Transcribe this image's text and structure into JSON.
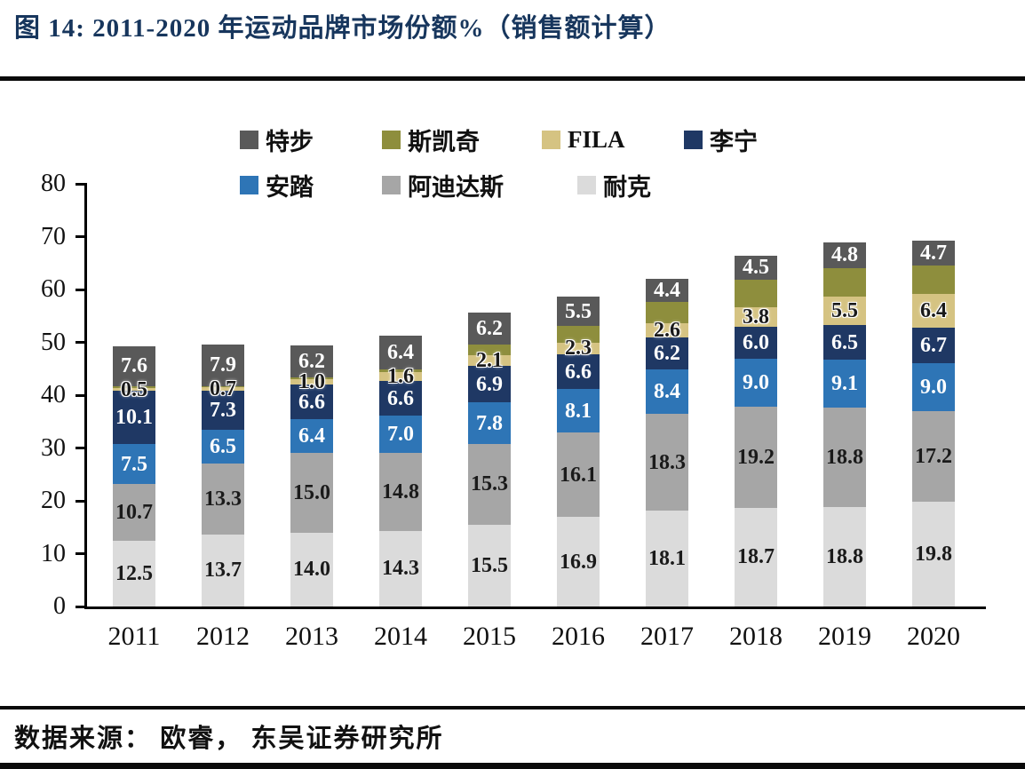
{
  "title": "图 14:  2011-2020 年运动品牌市场份额%（销售额计算）",
  "source": "数据来源： 欧睿， 东吴证券研究所",
  "chart_data": {
    "type": "bar",
    "stacked": true,
    "title": "2011-2020 年运动品牌市场份额%（销售额计算）",
    "xlabel": "",
    "ylabel": "",
    "ylim": [
      0,
      80
    ],
    "ytick_interval": 10,
    "yticks": [
      0,
      10,
      20,
      30,
      40,
      50,
      60,
      70,
      80
    ],
    "grid": false,
    "legend_position": "top",
    "legend_rows": [
      [
        "特步",
        "斯凯奇",
        "FILA",
        "李宁"
      ],
      [
        "安踏",
        "阿迪达斯",
        "耐克"
      ]
    ],
    "categories": [
      "2011",
      "2012",
      "2013",
      "2014",
      "2015",
      "2016",
      "2017",
      "2018",
      "2019",
      "2020"
    ],
    "series": [
      {
        "name": "耐克",
        "color": "#dbdbdb",
        "label_color": "#1a1a1a",
        "halo": false,
        "show_labels": true,
        "values": [
          12.5,
          13.7,
          14.0,
          14.3,
          15.5,
          16.9,
          18.1,
          18.7,
          18.8,
          19.8
        ]
      },
      {
        "name": "阿迪达斯",
        "color": "#a6a6a6",
        "label_color": "#1a1a1a",
        "halo": false,
        "show_labels": true,
        "values": [
          10.7,
          13.3,
          15.0,
          14.8,
          15.3,
          16.1,
          18.3,
          19.2,
          18.8,
          17.2
        ]
      },
      {
        "name": "安踏",
        "color": "#2e75b6",
        "label_color": "#ffffff",
        "halo": false,
        "show_labels": true,
        "values": [
          7.5,
          6.5,
          6.4,
          7.0,
          7.8,
          8.1,
          8.4,
          9.0,
          9.1,
          9.0
        ]
      },
      {
        "name": "李宁",
        "color": "#1f3864",
        "label_color": "#ffffff",
        "halo": false,
        "show_labels": true,
        "values": [
          10.1,
          7.3,
          6.6,
          6.6,
          6.9,
          6.6,
          6.2,
          6.0,
          6.5,
          6.7
        ]
      },
      {
        "name": "FILA",
        "color": "#d5c382",
        "label_color": "#1a1a1a",
        "halo": true,
        "show_labels": true,
        "values": [
          0.5,
          0.7,
          1.0,
          1.6,
          2.1,
          2.3,
          2.6,
          3.8,
          5.5,
          6.4
        ]
      },
      {
        "name": "斯凯奇",
        "color": "#8e8e3d",
        "label_color": "#ffffff",
        "halo": false,
        "show_labels": false,
        "values": [
          0.4,
          0.2,
          0.3,
          0.6,
          1.9,
          3.1,
          4.0,
          5.2,
          5.4,
          5.5
        ]
      },
      {
        "name": "特步",
        "color": "#595959",
        "label_color": "#ffffff",
        "halo": false,
        "show_labels": true,
        "values": [
          7.6,
          7.9,
          6.2,
          6.4,
          6.2,
          5.5,
          4.4,
          4.5,
          4.8,
          4.7
        ]
      }
    ]
  }
}
